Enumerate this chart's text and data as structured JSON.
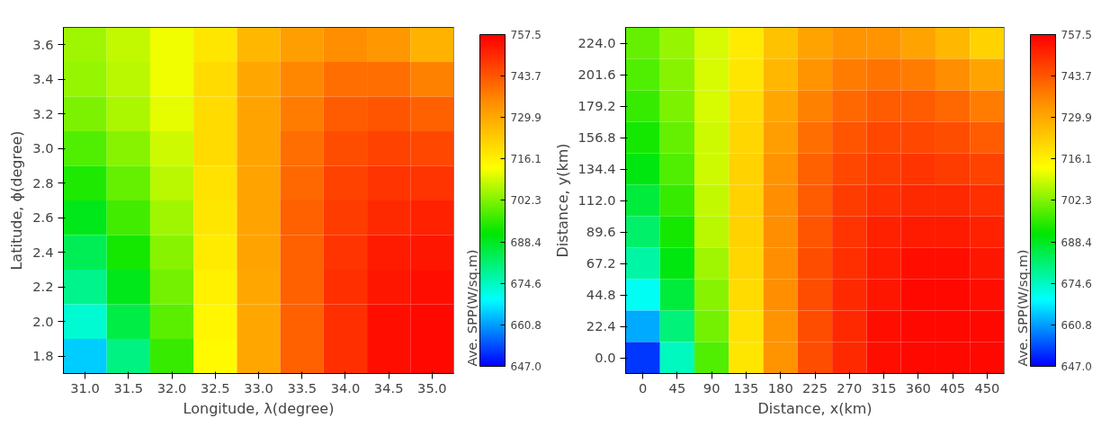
{
  "chart_data": [
    {
      "type": "heatmap",
      "xlabel": "Longitude, λ(degree)",
      "ylabel": "Latitude, ϕ(degree)",
      "clabel": "Ave. SPP(W/sq.m)",
      "categories": [
        "31.0",
        "31.5",
        "32.0",
        "32.5",
        "33.0",
        "33.5",
        "34.0",
        "34.5",
        "35.0"
      ],
      "y_categories": [
        "3.6",
        "3.4",
        "3.2",
        "3.0",
        "2.8",
        "2.6",
        "2.4",
        "2.2",
        "2.0",
        "1.8"
      ],
      "cells": [
        [
          705,
          708,
          712,
          718,
          727,
          732,
          735,
          733,
          728
        ],
        [
          704,
          707,
          712,
          720,
          730,
          736,
          740,
          740,
          737
        ],
        [
          702,
          706,
          711,
          720,
          731,
          738,
          743,
          744,
          742
        ],
        [
          698,
          703,
          709,
          720,
          731,
          740,
          745,
          747,
          746
        ],
        [
          694,
          700,
          707,
          719,
          731,
          741,
          747,
          749,
          749
        ],
        [
          689,
          697,
          705,
          718,
          731,
          742,
          748,
          751,
          752
        ],
        [
          684,
          693,
          703,
          717,
          731,
          742,
          749,
          753,
          754
        ],
        [
          679,
          689,
          701,
          716,
          730,
          742,
          750,
          754,
          755
        ],
        [
          673,
          685,
          699,
          715,
          730,
          742,
          750,
          755,
          756
        ],
        [
          665,
          680,
          696,
          714,
          730,
          742,
          750,
          755,
          756
        ]
      ],
      "clim": [
        647.0,
        757.5
      ],
      "cticks": [
        {
          "value": 647,
          "label": "647.0"
        },
        660.8,
        674.6,
        688.4,
        702.3,
        716.1,
        729.9,
        743.7,
        757.5
      ]
    },
    {
      "type": "heatmap",
      "xlabel": "Distance, x(km)",
      "ylabel": "Distance, y(km)",
      "clabel": "Ave. SPP(W/sq.m)",
      "categories": [
        "0",
        "45",
        "90",
        "135",
        "180",
        "225",
        "270",
        "315",
        "360",
        "405",
        "450"
      ],
      "y_categories": [
        "224.0",
        "201.6",
        "179.2",
        "156.8",
        "134.4",
        "112.0",
        "89.6",
        "67.2",
        "44.8",
        "22.4",
        "0.0"
      ],
      "cells": [
        [
          700,
          704,
          710,
          717,
          725,
          731,
          734,
          734,
          731,
          727,
          722
        ],
        [
          698,
          703,
          710,
          718,
          727,
          734,
          738,
          739,
          738,
          735,
          731
        ],
        [
          696,
          702,
          710,
          720,
          730,
          737,
          741,
          743,
          743,
          741,
          738
        ],
        [
          693,
          700,
          709,
          721,
          732,
          740,
          744,
          746,
          746,
          745,
          743
        ],
        [
          690,
          698,
          709,
          722,
          734,
          742,
          746,
          748,
          749,
          748,
          747
        ],
        [
          686,
          696,
          708,
          722,
          735,
          743,
          748,
          750,
          751,
          751,
          750
        ],
        [
          682,
          693,
          707,
          722,
          735,
          744,
          749,
          752,
          753,
          753,
          752
        ],
        [
          677,
          690,
          705,
          721,
          735,
          745,
          750,
          753,
          755,
          755,
          754
        ],
        [
          670,
          686,
          703,
          720,
          735,
          745,
          751,
          754,
          756,
          756,
          755
        ],
        [
          662,
          681,
          701,
          719,
          734,
          745,
          751,
          755,
          756,
          756,
          756
        ],
        [
          652,
          675,
          698,
          718,
          734,
          745,
          751,
          755,
          756,
          756,
          756
        ]
      ],
      "clim": [
        647.0,
        757.5
      ],
      "cticks": [
        {
          "value": 647,
          "label": "647.0"
        },
        660.8,
        674.6,
        688.4,
        702.3,
        716.1,
        729.9,
        743.7,
        757.5
      ]
    }
  ]
}
